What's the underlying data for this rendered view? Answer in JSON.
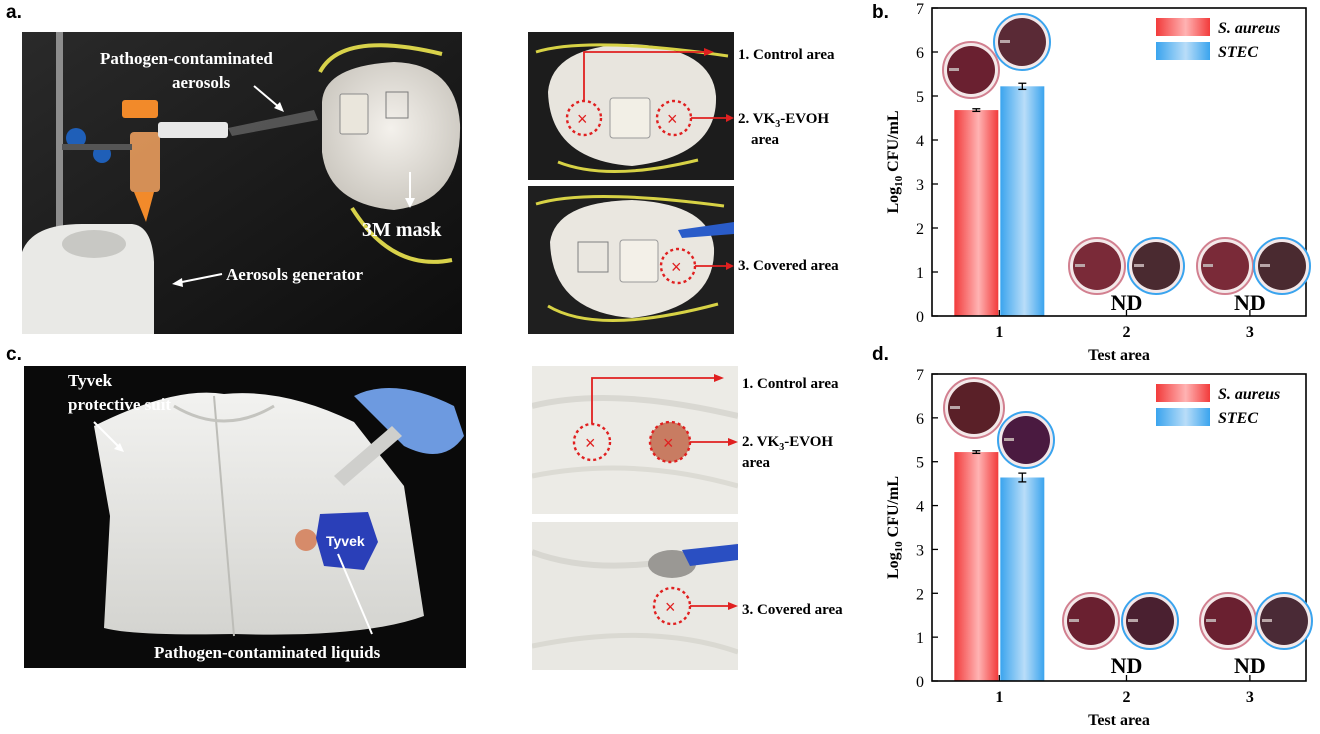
{
  "panels": {
    "a": {
      "letter": "a.",
      "labels": {
        "aerosols": "Pathogen-contaminated aerosols",
        "aerosols_line1": "Pathogen-contaminated",
        "aerosols_line2": "aerosols",
        "mask": "3M mask",
        "generator": "Aerosols generator"
      },
      "areas": {
        "control": "1. Control area",
        "vk3_line1": "2. VK",
        "vk3_sub": "3",
        "vk3_rest": "-EVOH",
        "vk3_line2": "area",
        "covered": "3. Covered area"
      }
    },
    "b": {
      "letter": "b."
    },
    "c": {
      "letter": "c.",
      "labels": {
        "suit_line1": "Tyvek",
        "suit_line2": "protective suit",
        "liquids": "Pathogen-contaminated liquids",
        "tag": "Tyvek"
      },
      "areas": {
        "control": "1. Control area",
        "vk3_line1": "2. VK",
        "vk3_sub": "3",
        "vk3_rest": "-EVOH",
        "vk3_line2": "area",
        "covered": "3. Covered area"
      }
    },
    "d": {
      "letter": "d."
    }
  },
  "colors": {
    "s_aureus": "#f23b3b",
    "stec": "#3aa4ee",
    "marker": "#e02020"
  },
  "chart_data": [
    {
      "type": "bar",
      "panel": "b",
      "categories": [
        "1",
        "2",
        "3"
      ],
      "xlabel": "Test area",
      "ylabel_prefix": "Log",
      "ylabel_sub": "10",
      "ylabel_suffix": " CFU/mL",
      "ylim": [
        0,
        7
      ],
      "yticks": [
        "0",
        "1",
        "2",
        "3",
        "4",
        "5",
        "6",
        "7"
      ],
      "series": [
        {
          "name": "S. aureus",
          "values": [
            4.68,
            0,
            0
          ],
          "errors": [
            0.03,
            0,
            0
          ]
        },
        {
          "name": "STEC",
          "values": [
            5.22,
            0,
            0
          ],
          "errors": [
            0.07,
            0,
            0
          ]
        }
      ],
      "annotations": [
        "ND",
        "ND"
      ],
      "legend_position": "top-right"
    },
    {
      "type": "bar",
      "panel": "d",
      "categories": [
        "1",
        "2",
        "3"
      ],
      "xlabel": "Test area",
      "ylabel_prefix": "Log",
      "ylabel_sub": "10",
      "ylabel_suffix": " CFU/mL",
      "ylim": [
        0,
        7
      ],
      "yticks": [
        "0",
        "1",
        "2",
        "3",
        "4",
        "5",
        "6",
        "7"
      ],
      "series": [
        {
          "name": "S. aureus",
          "values": [
            5.22,
            0,
            0
          ],
          "errors": [
            0.03,
            0,
            0
          ]
        },
        {
          "name": "STEC",
          "values": [
            4.64,
            0,
            0
          ],
          "errors": [
            0.1,
            0,
            0
          ]
        }
      ],
      "annotations": [
        "ND",
        "ND"
      ],
      "legend_position": "top-right"
    }
  ]
}
